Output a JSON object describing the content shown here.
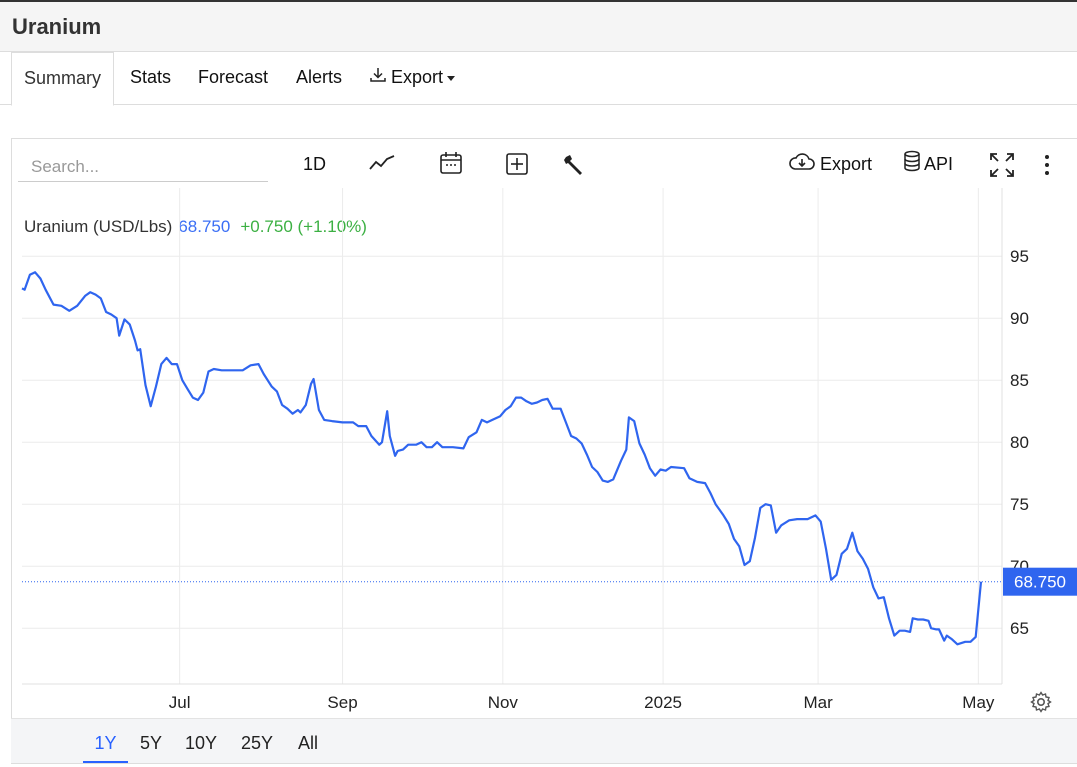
{
  "header": {
    "title": "Uranium"
  },
  "tabs": [
    {
      "label": "Summary",
      "active": true
    },
    {
      "label": "Stats"
    },
    {
      "label": "Forecast"
    },
    {
      "label": "Alerts"
    },
    {
      "label": "Export",
      "icon": "download-icon",
      "dropdown": true
    }
  ],
  "toolbar": {
    "search_placeholder": "Search...",
    "interval_label": "1D",
    "line_icon": "line-chart-icon",
    "calendar_icon": "calendar-icon",
    "compare_icon": "plus-box-icon",
    "tools_icon": "wrench-icon",
    "export_label": "Export",
    "export_icon": "cloud-download-icon",
    "api_label": "API",
    "api_icon": "database-icon",
    "fullscreen_icon": "fullscreen-icon",
    "more_icon": "more-vertical-icon"
  },
  "legend": {
    "name": "Uranium (USD/Lbs)",
    "price": "68.750",
    "change": "+0.750 (+1.10%)"
  },
  "colors": {
    "line": "#2f65ef",
    "positive": "#3cb043",
    "price_tag": "#2f65ef"
  },
  "ranges": [
    {
      "label": "1Y",
      "active": true
    },
    {
      "label": "5Y"
    },
    {
      "label": "10Y"
    },
    {
      "label": "25Y"
    },
    {
      "label": "All"
    }
  ],
  "settings_icon": "gear-icon",
  "chart_data": {
    "type": "line",
    "x_ticks": [
      "Jul",
      "Sep",
      "Nov",
      "2025",
      "Mar",
      "May"
    ],
    "y_ticks": [
      65,
      70,
      75,
      80,
      85,
      90,
      95
    ],
    "ylim": [
      60.5,
      100.5
    ],
    "grid": true,
    "last_value_label": "68.750",
    "x_date_range": [
      "2024-05-02",
      "2025-05-02"
    ],
    "series": [
      {
        "name": "Uranium (USD/Lbs)",
        "points": [
          [
            "2024-05-02",
            92.4
          ],
          [
            "2024-05-03",
            92.3
          ],
          [
            "2024-05-05",
            93.5
          ],
          [
            "2024-05-07",
            93.7
          ],
          [
            "2024-05-09",
            93.2
          ],
          [
            "2024-05-11",
            92.3
          ],
          [
            "2024-05-14",
            91.1
          ],
          [
            "2024-05-17",
            91.0
          ],
          [
            "2024-05-20",
            90.6
          ],
          [
            "2024-05-23",
            91.0
          ],
          [
            "2024-05-26",
            91.8
          ],
          [
            "2024-05-28",
            92.1
          ],
          [
            "2024-05-30",
            91.9
          ],
          [
            "2024-06-01",
            91.6
          ],
          [
            "2024-06-03",
            90.5
          ],
          [
            "2024-06-05",
            90.3
          ],
          [
            "2024-06-07",
            90.0
          ],
          [
            "2024-06-08",
            88.6
          ],
          [
            "2024-06-10",
            89.9
          ],
          [
            "2024-06-12",
            89.5
          ],
          [
            "2024-06-14",
            88.2
          ],
          [
            "2024-06-15",
            87.4
          ],
          [
            "2024-06-16",
            87.5
          ],
          [
            "2024-06-18",
            84.6
          ],
          [
            "2024-06-20",
            82.9
          ],
          [
            "2024-06-22",
            84.5
          ],
          [
            "2024-06-24",
            86.3
          ],
          [
            "2024-06-26",
            86.8
          ],
          [
            "2024-06-28",
            86.3
          ],
          [
            "2024-06-30",
            86.3
          ],
          [
            "2024-07-02",
            85.0
          ],
          [
            "2024-07-04",
            84.3
          ],
          [
            "2024-07-06",
            83.6
          ],
          [
            "2024-07-08",
            83.4
          ],
          [
            "2024-07-10",
            84.0
          ],
          [
            "2024-07-12",
            85.7
          ],
          [
            "2024-07-14",
            85.9
          ],
          [
            "2024-07-17",
            85.8
          ],
          [
            "2024-07-21",
            85.8
          ],
          [
            "2024-07-25",
            85.8
          ],
          [
            "2024-07-28",
            86.2
          ],
          [
            "2024-07-31",
            86.3
          ],
          [
            "2024-08-02",
            85.5
          ],
          [
            "2024-08-05",
            84.5
          ],
          [
            "2024-08-07",
            84.1
          ],
          [
            "2024-08-09",
            83.0
          ],
          [
            "2024-08-11",
            82.7
          ],
          [
            "2024-08-13",
            82.3
          ],
          [
            "2024-08-15",
            82.6
          ],
          [
            "2024-08-16",
            82.4
          ],
          [
            "2024-08-18",
            83.0
          ],
          [
            "2024-08-20",
            84.7
          ],
          [
            "2024-08-21",
            85.1
          ],
          [
            "2024-08-23",
            82.6
          ],
          [
            "2024-08-25",
            81.8
          ],
          [
            "2024-08-28",
            81.7
          ],
          [
            "2024-09-01",
            81.6
          ],
          [
            "2024-09-05",
            81.6
          ],
          [
            "2024-09-07",
            81.3
          ],
          [
            "2024-09-10",
            81.3
          ],
          [
            "2024-09-12",
            80.5
          ],
          [
            "2024-09-15",
            79.8
          ],
          [
            "2024-09-16",
            80.0
          ],
          [
            "2024-09-18",
            82.5
          ],
          [
            "2024-09-19",
            80.5
          ],
          [
            "2024-09-21",
            78.9
          ],
          [
            "2024-09-22",
            79.3
          ],
          [
            "2024-09-24",
            79.4
          ],
          [
            "2024-09-26",
            79.8
          ],
          [
            "2024-09-29",
            79.8
          ],
          [
            "2024-10-01",
            80.0
          ],
          [
            "2024-10-03",
            79.6
          ],
          [
            "2024-10-05",
            79.6
          ],
          [
            "2024-10-07",
            80.0
          ],
          [
            "2024-10-09",
            79.6
          ],
          [
            "2024-10-13",
            79.6
          ],
          [
            "2024-10-17",
            79.5
          ],
          [
            "2024-10-19",
            80.4
          ],
          [
            "2024-10-22",
            80.8
          ],
          [
            "2024-10-24",
            81.8
          ],
          [
            "2024-10-26",
            81.6
          ],
          [
            "2024-10-28",
            81.8
          ],
          [
            "2024-10-31",
            82.1
          ],
          [
            "2024-11-02",
            82.6
          ],
          [
            "2024-11-04",
            82.9
          ],
          [
            "2024-11-06",
            83.6
          ],
          [
            "2024-11-08",
            83.6
          ],
          [
            "2024-11-10",
            83.3
          ],
          [
            "2024-11-12",
            83.1
          ],
          [
            "2024-11-14",
            83.2
          ],
          [
            "2024-11-16",
            83.4
          ],
          [
            "2024-11-18",
            83.5
          ],
          [
            "2024-11-20",
            82.7
          ],
          [
            "2024-11-23",
            82.7
          ],
          [
            "2024-11-25",
            81.6
          ],
          [
            "2024-11-27",
            80.5
          ],
          [
            "2024-11-29",
            80.3
          ],
          [
            "2024-12-01",
            79.9
          ],
          [
            "2024-12-03",
            79.0
          ],
          [
            "2024-12-05",
            78.0
          ],
          [
            "2024-12-07",
            77.6
          ],
          [
            "2024-12-09",
            76.9
          ],
          [
            "2024-12-11",
            76.8
          ],
          [
            "2024-12-13",
            77.0
          ],
          [
            "2024-12-16",
            78.5
          ],
          [
            "2024-12-18",
            79.4
          ],
          [
            "2024-12-19",
            82.0
          ],
          [
            "2024-12-21",
            81.7
          ],
          [
            "2024-12-23",
            79.9
          ],
          [
            "2024-12-25",
            79.0
          ],
          [
            "2024-12-27",
            77.9
          ],
          [
            "2024-12-29",
            77.3
          ],
          [
            "2024-12-31",
            77.8
          ],
          [
            "2025-01-02",
            77.7
          ],
          [
            "2025-01-04",
            78.0
          ],
          [
            "2025-01-09",
            77.9
          ],
          [
            "2025-01-11",
            77.1
          ],
          [
            "2025-01-14",
            76.8
          ],
          [
            "2025-01-17",
            76.7
          ],
          [
            "2025-01-19",
            75.9
          ],
          [
            "2025-01-21",
            75.0
          ],
          [
            "2025-01-24",
            74.1
          ],
          [
            "2025-01-26",
            73.4
          ],
          [
            "2025-01-28",
            72.2
          ],
          [
            "2025-01-30",
            71.6
          ],
          [
            "2025-02-01",
            70.1
          ],
          [
            "2025-02-03",
            70.4
          ],
          [
            "2025-02-05",
            72.3
          ],
          [
            "2025-02-07",
            74.7
          ],
          [
            "2025-02-09",
            75.0
          ],
          [
            "2025-02-11",
            74.9
          ],
          [
            "2025-02-13",
            72.7
          ],
          [
            "2025-02-15",
            73.3
          ],
          [
            "2025-02-18",
            73.7
          ],
          [
            "2025-02-21",
            73.8
          ],
          [
            "2025-02-25",
            73.8
          ],
          [
            "2025-02-28",
            74.1
          ],
          [
            "2025-03-02",
            73.6
          ],
          [
            "2025-03-04",
            71.4
          ],
          [
            "2025-03-06",
            68.9
          ],
          [
            "2025-03-08",
            69.3
          ],
          [
            "2025-03-10",
            71.0
          ],
          [
            "2025-03-12",
            71.4
          ],
          [
            "2025-03-14",
            72.7
          ],
          [
            "2025-03-16",
            71.2
          ],
          [
            "2025-03-18",
            70.6
          ],
          [
            "2025-03-20",
            69.8
          ],
          [
            "2025-03-22",
            68.3
          ],
          [
            "2025-03-24",
            67.4
          ],
          [
            "2025-03-26",
            67.5
          ],
          [
            "2025-03-28",
            65.8
          ],
          [
            "2025-03-30",
            64.4
          ],
          [
            "2025-04-01",
            64.8
          ],
          [
            "2025-04-03",
            64.8
          ],
          [
            "2025-04-05",
            64.7
          ],
          [
            "2025-04-06",
            65.8
          ],
          [
            "2025-04-08",
            65.7
          ],
          [
            "2025-04-10",
            65.7
          ],
          [
            "2025-04-12",
            65.6
          ],
          [
            "2025-04-13",
            65.0
          ],
          [
            "2025-04-15",
            64.9
          ],
          [
            "2025-04-16",
            64.9
          ],
          [
            "2025-04-18",
            64.0
          ],
          [
            "2025-04-19",
            64.4
          ],
          [
            "2025-04-21",
            64.1
          ],
          [
            "2025-04-23",
            63.7
          ],
          [
            "2025-04-26",
            63.9
          ],
          [
            "2025-04-28",
            63.9
          ],
          [
            "2025-04-30",
            64.3
          ],
          [
            "2025-05-02",
            68.75
          ]
        ]
      }
    ]
  }
}
